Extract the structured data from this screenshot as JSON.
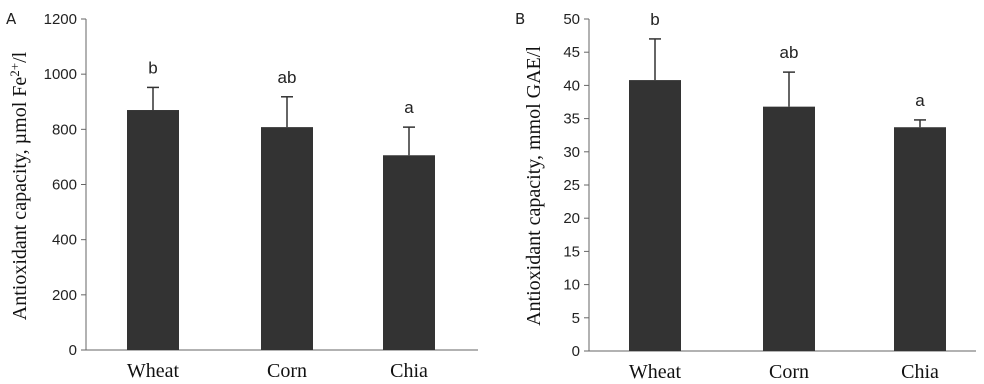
{
  "chart_data": [
    {
      "type": "bar",
      "panel_label": "A",
      "categories": [
        "Wheat",
        "Corn",
        "Chia"
      ],
      "values": [
        870,
        808,
        706
      ],
      "errors": [
        82,
        110,
        102
      ],
      "significance": [
        "b",
        "ab",
        "a"
      ],
      "title": "",
      "xlabel": "",
      "ylabel": "Antioxidant capacity, µmol Fe",
      "ylabel_sup": "2+",
      "ylabel_tail": "/l",
      "ylim": [
        0,
        1200
      ],
      "yticks": [
        0,
        200,
        400,
        600,
        800,
        1000,
        1200
      ],
      "grid": false,
      "bar_color": "#333333"
    },
    {
      "type": "bar",
      "panel_label": "B",
      "categories": [
        "Wheat",
        "Corn",
        "Chia"
      ],
      "values": [
        40.8,
        36.8,
        33.7
      ],
      "errors": [
        6.2,
        5.2,
        1.1
      ],
      "significance": [
        "b",
        "ab",
        "a"
      ],
      "title": "",
      "xlabel": "",
      "ylabel": "Antioxidant capacity, mmol GAE/l",
      "ylim": [
        0,
        50
      ],
      "yticks": [
        0,
        5,
        10,
        15,
        20,
        25,
        30,
        35,
        40,
        45,
        50
      ],
      "grid": false,
      "bar_color": "#333333"
    }
  ]
}
